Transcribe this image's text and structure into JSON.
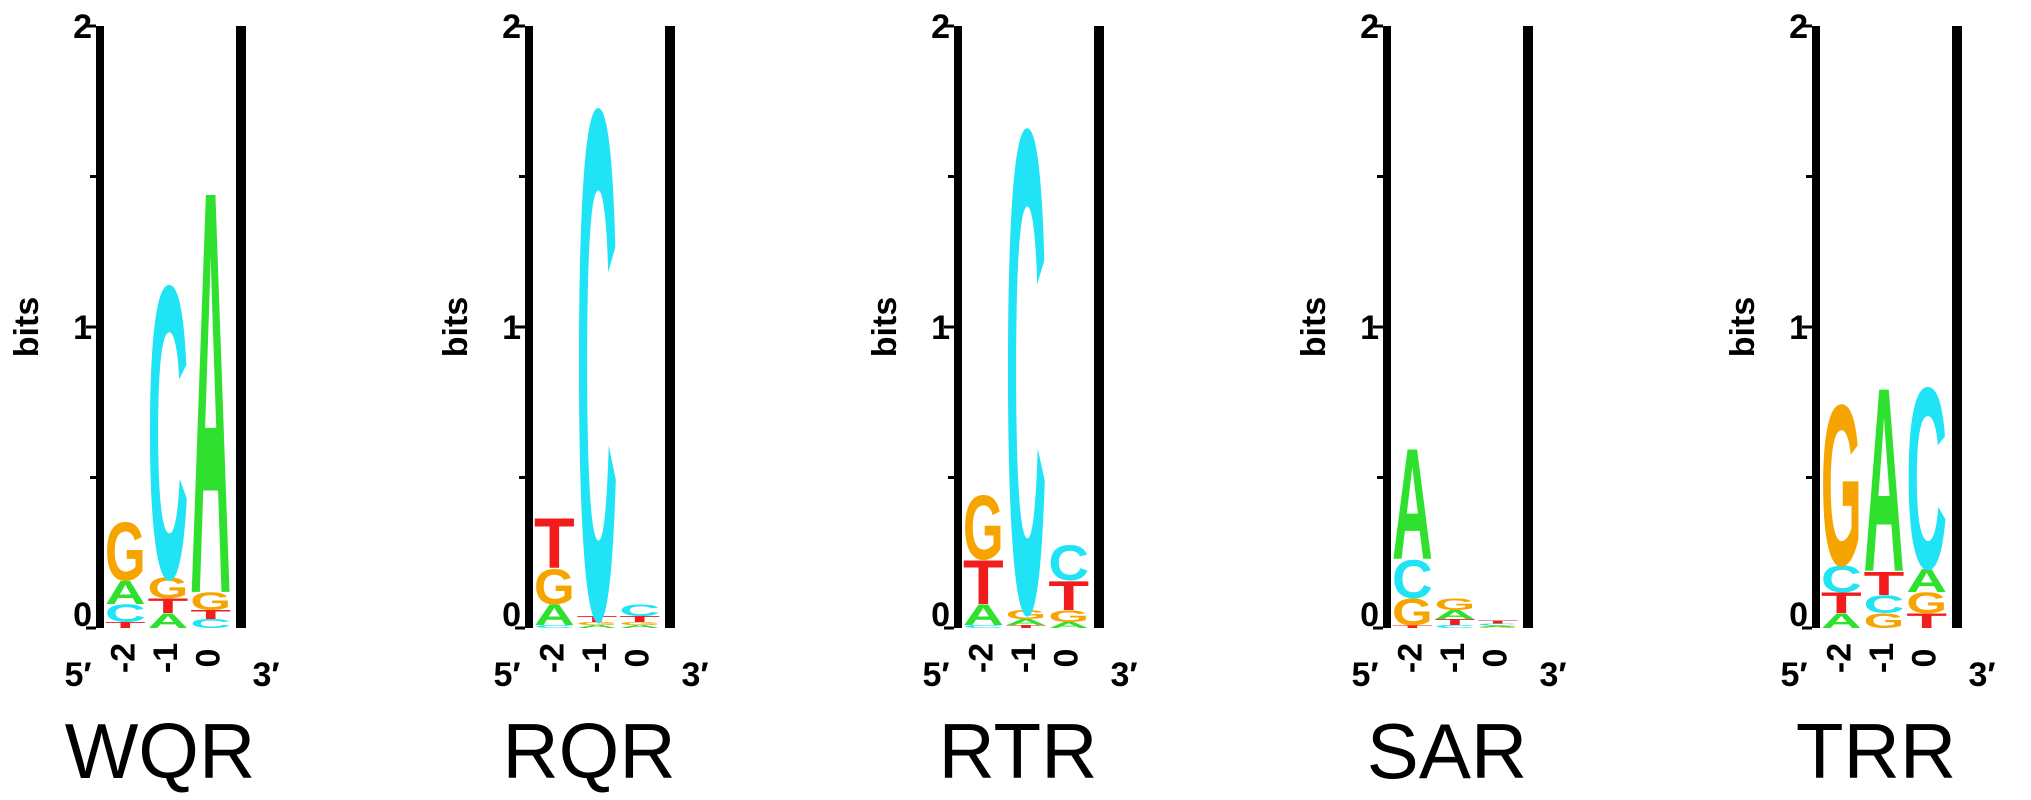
{
  "chart_data": [
    {
      "type": "logo",
      "title": "WQR",
      "ylabel": "bits",
      "left_label": "5′",
      "right_label": "3′",
      "categories": [
        "-2",
        "-1",
        "0"
      ],
      "ylim": [
        0,
        2
      ],
      "yticks": [
        0,
        1,
        2
      ],
      "yminorticks": [
        0.5,
        1.5
      ],
      "series": [
        {
          "name": "A",
          "color": "#2fe02f",
          "values": [
            0.08,
            0.05,
            1.38
          ]
        },
        {
          "name": "C",
          "color": "#20e3f5",
          "values": [
            0.06,
            1.0,
            0.03
          ]
        },
        {
          "name": "G",
          "color": "#f5a400",
          "values": [
            0.2,
            0.07,
            0.06
          ]
        },
        {
          "name": "T",
          "color": "#f21c1c",
          "values": [
            0.02,
            0.05,
            0.03
          ]
        }
      ]
    },
    {
      "type": "logo",
      "title": "RQR",
      "ylabel": "bits",
      "left_label": "5′",
      "right_label": "3′",
      "categories": [
        "-2",
        "-1",
        "0"
      ],
      "ylim": [
        0,
        2
      ],
      "yticks": [
        0,
        1,
        2
      ],
      "yminorticks": [
        0.5,
        1.5
      ],
      "series": [
        {
          "name": "A",
          "color": "#2fe02f",
          "values": [
            0.07,
            0.01,
            0.01
          ]
        },
        {
          "name": "C",
          "color": "#20e3f5",
          "values": [
            0.01,
            1.74,
            0.04
          ]
        },
        {
          "name": "G",
          "color": "#f5a400",
          "values": [
            0.12,
            0.01,
            0.01
          ]
        },
        {
          "name": "T",
          "color": "#f21c1c",
          "values": [
            0.17,
            0.02,
            0.02
          ]
        }
      ]
    },
    {
      "type": "logo",
      "title": "RTR",
      "ylabel": "bits",
      "left_label": "5′",
      "right_label": "3′",
      "categories": [
        "-2",
        "-1",
        "0"
      ],
      "ylim": [
        0,
        2
      ],
      "yticks": [
        0,
        1,
        2
      ],
      "yminorticks": [
        0.5,
        1.5
      ],
      "series": [
        {
          "name": "A",
          "color": "#2fe02f",
          "values": [
            0.07,
            0.02,
            0.02
          ]
        },
        {
          "name": "C",
          "color": "#20e3f5",
          "values": [
            0.01,
            1.65,
            0.12
          ]
        },
        {
          "name": "G",
          "color": "#f5a400",
          "values": [
            0.22,
            0.03,
            0.04
          ]
        },
        {
          "name": "T",
          "color": "#f21c1c",
          "values": [
            0.15,
            0.01,
            0.1
          ]
        }
      ]
    },
    {
      "type": "logo",
      "title": "SAR",
      "ylabel": "bits",
      "left_label": "5′",
      "right_label": "3′",
      "categories": [
        "-2",
        "-1",
        "0"
      ],
      "ylim": [
        0,
        2
      ],
      "yticks": [
        0,
        1,
        2
      ],
      "yminorticks": [
        0.5,
        1.5
      ],
      "series": [
        {
          "name": "A",
          "color": "#2fe02f",
          "values": [
            0.38,
            0.03,
            0.005
          ]
        },
        {
          "name": "C",
          "color": "#20e3f5",
          "values": [
            0.13,
            0.01,
            0.006
          ]
        },
        {
          "name": "G",
          "color": "#f5a400",
          "values": [
            0.09,
            0.04,
            0.004
          ]
        },
        {
          "name": "T",
          "color": "#f21c1c",
          "values": [
            0.01,
            0.02,
            0.01
          ]
        }
      ]
    },
    {
      "type": "logo",
      "title": "TRR",
      "ylabel": "bits",
      "left_label": "5′",
      "right_label": "3′",
      "categories": [
        "-2",
        "-1",
        "0"
      ],
      "ylim": [
        0,
        2
      ],
      "yticks": [
        0,
        1,
        2
      ],
      "yminorticks": [
        0.5,
        1.5
      ],
      "series": [
        {
          "name": "A",
          "color": "#2fe02f",
          "values": [
            0.05,
            0.63,
            0.08
          ]
        },
        {
          "name": "C",
          "color": "#20e3f5",
          "values": [
            0.09,
            0.06,
            0.62
          ]
        },
        {
          "name": "G",
          "color": "#f5a400",
          "values": [
            0.55,
            0.05,
            0.07
          ]
        },
        {
          "name": "T",
          "color": "#f21c1c",
          "values": [
            0.07,
            0.08,
            0.05
          ]
        }
      ]
    }
  ]
}
